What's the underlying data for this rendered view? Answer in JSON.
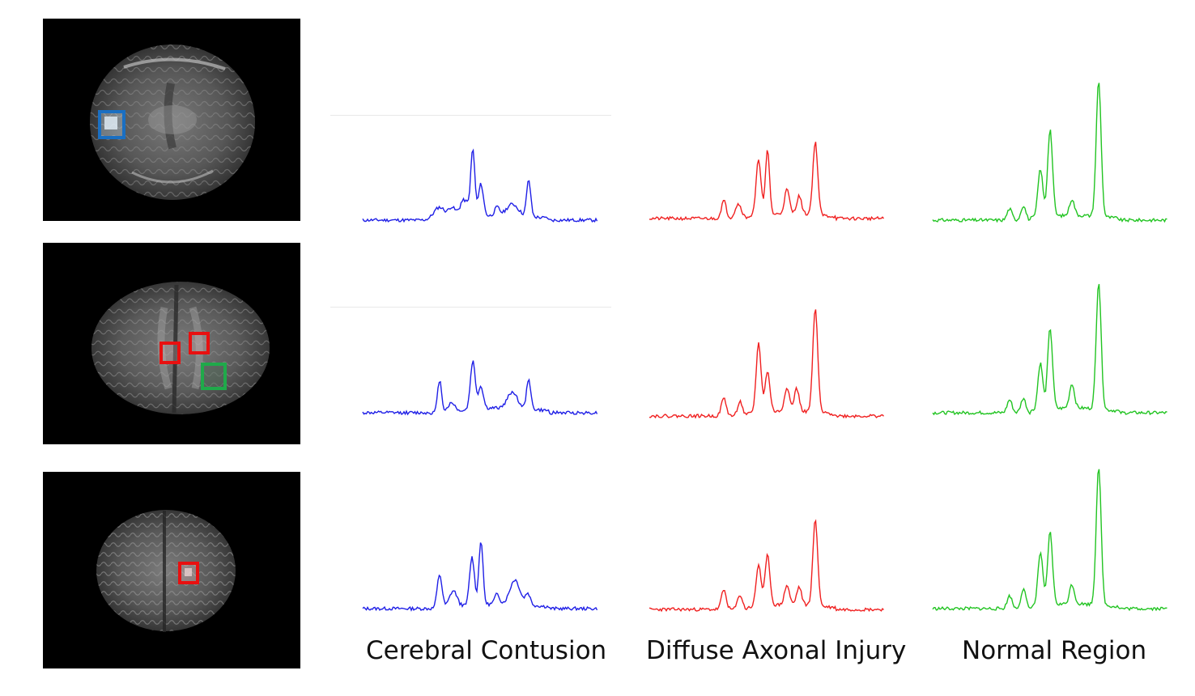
{
  "columns": [
    {
      "label": "Cerebral Contusion",
      "color": "#1f1fe6"
    },
    {
      "label": "Diffuse Axonal Injury",
      "color": "#f02020"
    },
    {
      "label": "Normal Region",
      "color": "#22c422"
    }
  ],
  "roi_colors": {
    "contusion": "#1a6fc2",
    "dai": "#e81010",
    "normal": "#1faa4a"
  },
  "background": "#000000"
}
